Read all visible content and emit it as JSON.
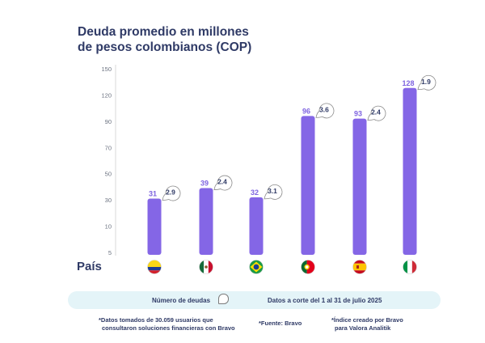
{
  "title_lines": [
    "Deuda promedio en millones",
    "de pesos colombianos (COP)"
  ],
  "x_axis_label": "País",
  "chart_data": {
    "type": "bar",
    "title": "Deuda promedio en millones de pesos colombianos (COP)",
    "xlabel": "País",
    "ylabel": "",
    "y_ticks": [
      150,
      120,
      90,
      70,
      50,
      30,
      10,
      5
    ],
    "categories": [
      "Colombia",
      "México",
      "Brasil",
      "Portugal",
      "España",
      "Italia"
    ],
    "values": [
      31,
      39,
      32,
      96,
      93,
      128
    ],
    "debt_counts": [
      2.9,
      2.4,
      3.1,
      3.6,
      2.4,
      1.9
    ],
    "value_labels": [
      "31",
      "39",
      "32",
      "96",
      "93",
      "128"
    ],
    "count_labels": [
      "2.9",
      "2.4",
      "3.1",
      "3.6",
      "2.4",
      "1.9"
    ],
    "grid": false,
    "bar_color": "#8466e6"
  },
  "flags": [
    {
      "country": "Colombia",
      "icon": "colombia-flag-icon",
      "colors": [
        "#f9d616",
        "#1d3c94",
        "#d3212c"
      ],
      "layout": "horizontal-colombia"
    },
    {
      "country": "México",
      "icon": "mexico-flag-icon",
      "colors": [
        "#156b3a",
        "#ffffff",
        "#c8102e"
      ],
      "layout": "vertical"
    },
    {
      "country": "Brasil",
      "icon": "brazil-flag-icon",
      "colors": [
        "#1b9a47",
        "#fedf00",
        "#1c3f94"
      ],
      "layout": "brazil"
    },
    {
      "country": "Portugal",
      "icon": "portugal-flag-icon",
      "colors": [
        "#0a6a2f",
        "#e3001b",
        "#f6d300"
      ],
      "layout": "portugal"
    },
    {
      "country": "España",
      "icon": "spain-flag-icon",
      "colors": [
        "#c60b1e",
        "#ffc400",
        "#c60b1e"
      ],
      "layout": "horizontal-spain"
    },
    {
      "country": "Italia",
      "icon": "italy-flag-icon",
      "colors": [
        "#009246",
        "#ffffff",
        "#ce2b37"
      ],
      "layout": "vertical"
    }
  ],
  "info_bar": {
    "left_text": "Número de deudas",
    "right_text": "Datos a corte del 1 al 31 de julio 2025"
  },
  "footnotes": {
    "note1_line1": "*Datos tomados de 30.059 usuarios que",
    "note1_line2": "consultaron soluciones financieras con Bravo",
    "note2": "*Fuente: Bravo",
    "note3_line1": "*Índice creado por Bravo",
    "note3_line2": "para Valora Analitik"
  }
}
